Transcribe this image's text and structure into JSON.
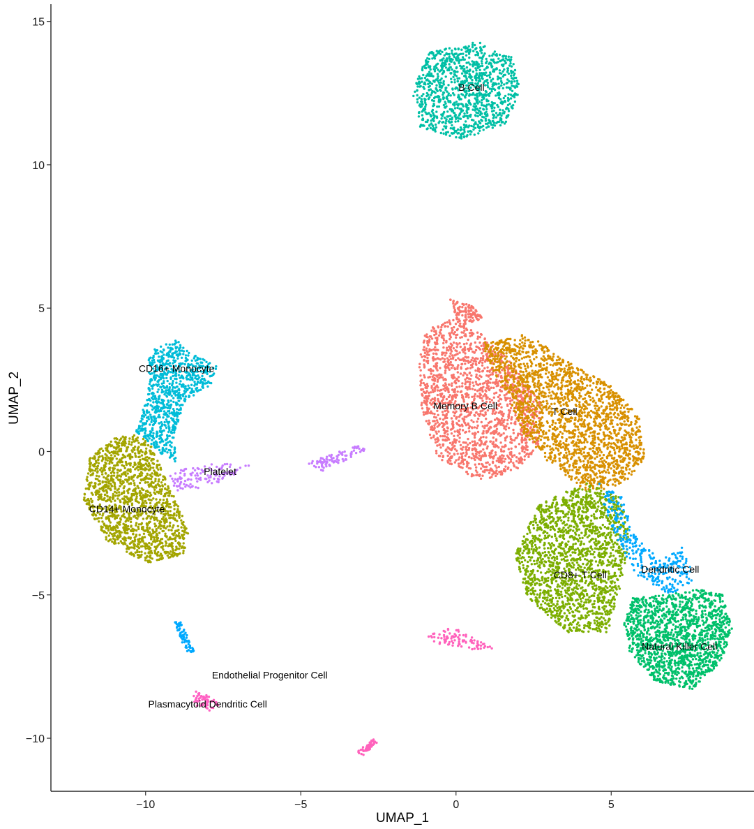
{
  "chart_data": {
    "type": "scatter",
    "title": "",
    "xlabel": "UMAP_1",
    "ylabel": "UMAP_2",
    "xlim": [
      -13.05,
      9.6
    ],
    "ylim": [
      -11.85,
      15.6
    ],
    "x_ticks": [
      -10,
      -5,
      0,
      5
    ],
    "x_tick_labels": [
      "−10",
      "−5",
      "0",
      "5"
    ],
    "y_ticks": [
      -10,
      -5,
      0,
      5,
      10,
      15
    ],
    "y_tick_labels": [
      "−10",
      "−5",
      "0",
      "5",
      "10",
      "15"
    ],
    "grid": false,
    "legend": "none (cluster names drawn at cluster centers)",
    "series": [
      {
        "name": "B Cell",
        "color": "#00BFA5",
        "label_at": [
          0.5,
          12.7
        ],
        "blobs": [
          {
            "polygon": [
              [
                -0.9,
                13.9
              ],
              [
                0.7,
                14.3
              ],
              [
                1.8,
                13.8
              ],
              [
                2.1,
                12.6
              ],
              [
                1.6,
                11.4
              ],
              [
                0.2,
                10.9
              ],
              [
                -1.2,
                11.3
              ],
              [
                -1.4,
                12.5
              ]
            ],
            "n": 1100
          }
        ]
      },
      {
        "name": "Memory B Cell",
        "color": "#F8766D",
        "label_at": [
          0.3,
          1.6
        ],
        "blobs": [
          {
            "polygon": [
              [
                -1.0,
                4.2
              ],
              [
                -0.3,
                4.7
              ],
              [
                0.8,
                4.1
              ],
              [
                1.7,
                3.2
              ],
              [
                2.7,
                1.8
              ],
              [
                2.7,
                0.2
              ],
              [
                1.8,
                -0.8
              ],
              [
                0.6,
                -1.0
              ],
              [
                -0.6,
                -0.2
              ],
              [
                -1.1,
                1.4
              ],
              [
                -1.2,
                3.0
              ]
            ],
            "n": 1700
          },
          {
            "polygon": [
              [
                -0.2,
                5.3
              ],
              [
                0.5,
                5.1
              ],
              [
                0.9,
                4.6
              ],
              [
                0.1,
                4.4
              ]
            ],
            "n": 120
          }
        ]
      },
      {
        "name": "T Cell",
        "color": "#D89000",
        "label_at": [
          3.5,
          1.4
        ],
        "blobs": [
          {
            "polygon": [
              [
                0.9,
                3.8
              ],
              [
                2.3,
                4.1
              ],
              [
                3.8,
                3.0
              ],
              [
                5.0,
                2.3
              ],
              [
                5.9,
                1.2
              ],
              [
                6.1,
                -0.2
              ],
              [
                5.3,
                -1.3
              ],
              [
                4.2,
                -1.4
              ],
              [
                3.0,
                -0.4
              ],
              [
                2.2,
                0.6
              ],
              [
                1.6,
                2.1
              ],
              [
                1.0,
                3.1
              ]
            ],
            "n": 2000
          }
        ]
      },
      {
        "name": "CD8+ T Cell",
        "color": "#7CAE00",
        "label_at": [
          4.0,
          -4.3
        ],
        "blobs": [
          {
            "polygon": [
              [
                2.7,
                -1.8
              ],
              [
                4.2,
                -1.1
              ],
              [
                5.3,
                -1.6
              ],
              [
                5.6,
                -3.0
              ],
              [
                5.3,
                -4.7
              ],
              [
                4.9,
                -6.3
              ],
              [
                3.6,
                -6.3
              ],
              [
                2.3,
                -5.1
              ],
              [
                1.9,
                -3.6
              ]
            ],
            "n": 1800
          }
        ]
      },
      {
        "name": "Natural Killer Cell",
        "color": "#00C06B",
        "label_at": [
          7.2,
          -6.8
        ],
        "blobs": [
          {
            "polygon": [
              [
                5.7,
                -5.1
              ],
              [
                6.8,
                -5.0
              ],
              [
                7.8,
                -4.8
              ],
              [
                8.6,
                -5.0
              ],
              [
                8.9,
                -6.2
              ],
              [
                8.5,
                -7.5
              ],
              [
                7.6,
                -8.3
              ],
              [
                6.4,
                -8.0
              ],
              [
                5.6,
                -7.0
              ],
              [
                5.4,
                -6.0
              ]
            ],
            "n": 1500
          }
        ]
      },
      {
        "name": "Dendritic Cell",
        "color": "#00A9FF",
        "label_at": [
          6.9,
          -4.1
        ],
        "blobs": [
          {
            "polygon": [
              [
                4.6,
                -1.1
              ],
              [
                5.3,
                -1.5
              ],
              [
                5.8,
                -3.0
              ],
              [
                6.6,
                -3.8
              ],
              [
                7.3,
                -3.3
              ],
              [
                7.7,
                -4.5
              ],
              [
                6.9,
                -5.0
              ],
              [
                5.8,
                -4.3
              ],
              [
                5.2,
                -3.1
              ],
              [
                4.8,
                -2.0
              ]
            ],
            "n": 320
          },
          {
            "polygon": [
              [
                -9.1,
                -5.9
              ],
              [
                -8.9,
                -5.9
              ],
              [
                -8.4,
                -7.0
              ],
              [
                -8.7,
                -7.0
              ]
            ],
            "n": 70
          }
        ]
      },
      {
        "name": "CD16+ Monocyte",
        "color": "#00BCD8",
        "label_at": [
          -9.0,
          2.9
        ],
        "blobs": [
          {
            "polygon": [
              [
                -9.7,
                3.6
              ],
              [
                -9.0,
                3.9
              ],
              [
                -8.3,
                3.3
              ],
              [
                -7.7,
                3.0
              ],
              [
                -7.9,
                2.3
              ],
              [
                -8.7,
                1.8
              ],
              [
                -9.1,
                0.6
              ],
              [
                -9.0,
                -0.4
              ],
              [
                -9.6,
                0.0
              ],
              [
                -10.3,
                0.7
              ],
              [
                -9.9,
                2.2
              ],
              [
                -9.9,
                3.2
              ]
            ],
            "n": 850
          }
        ]
      },
      {
        "name": "CD14+ Monocyte",
        "color": "#A3A500",
        "label_at": [
          -10.6,
          -2.0
        ],
        "blobs": [
          {
            "polygon": [
              [
                -11.8,
                -0.2
              ],
              [
                -11.0,
                0.5
              ],
              [
                -10.0,
                0.6
              ],
              [
                -9.4,
                -0.8
              ],
              [
                -8.9,
                -2.0
              ],
              [
                -8.6,
                -2.9
              ],
              [
                -8.8,
                -3.6
              ],
              [
                -9.9,
                -3.9
              ],
              [
                -11.2,
                -3.2
              ],
              [
                -12.0,
                -1.7
              ]
            ],
            "n": 1500
          }
        ]
      },
      {
        "name": "Platelet",
        "color": "#C77CFF",
        "label_at": [
          -7.6,
          -0.7
        ],
        "blobs": [
          {
            "polygon": [
              [
                -9.3,
                -0.7
              ],
              [
                -7.6,
                -0.4
              ],
              [
                -6.5,
                -0.5
              ],
              [
                -7.9,
                -1.2
              ],
              [
                -9.0,
                -1.4
              ]
            ],
            "n": 120
          },
          {
            "polygon": [
              [
                -4.8,
                -0.4
              ],
              [
                -3.2,
                0.2
              ],
              [
                -2.8,
                0.1
              ],
              [
                -4.3,
                -0.7
              ]
            ],
            "n": 90
          }
        ]
      },
      {
        "name": "Endothelial Progenitor Cell",
        "color": "#FF62BC",
        "label_at": [
          -6.0,
          -7.8
        ],
        "blobs": [
          {
            "polygon": [
              [
                -1.0,
                -6.4
              ],
              [
                0.0,
                -6.1
              ],
              [
                0.7,
                -6.6
              ],
              [
                1.3,
                -6.9
              ],
              [
                0.3,
                -6.9
              ],
              [
                -0.6,
                -6.7
              ]
            ],
            "n": 90
          },
          {
            "polygon": [
              [
                -3.2,
                -10.5
              ],
              [
                -2.7,
                -10.0
              ],
              [
                -2.5,
                -10.1
              ],
              [
                -3.0,
                -10.6
              ]
            ],
            "n": 50
          }
        ]
      },
      {
        "name": "Plasmacytoid Dendritic Cell",
        "color": "#FF61C3",
        "label_at": [
          -8.0,
          -8.8
        ],
        "blobs": [
          {
            "polygon": [
              [
                -8.4,
                -8.3
              ],
              [
                -8.0,
                -8.5
              ],
              [
                -7.6,
                -8.8
              ],
              [
                -8.0,
                -9.1
              ],
              [
                -8.5,
                -8.8
              ]
            ],
            "n": 60
          }
        ]
      }
    ]
  }
}
